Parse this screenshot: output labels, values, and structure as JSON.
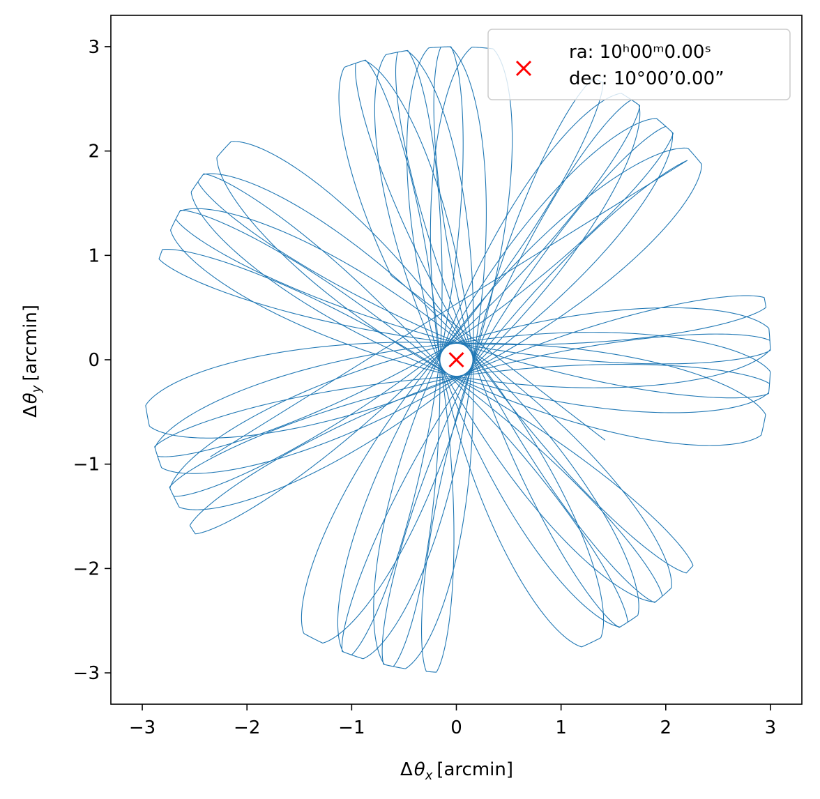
{
  "chart_data": {
    "type": "line",
    "xlabel_parts": [
      "Δ",
      "θ",
      "x",
      "[arcmin]"
    ],
    "ylabel_parts": [
      "Δ",
      "θ",
      "y",
      "[arcmin]"
    ],
    "xlim": [
      -3.3,
      3.3
    ],
    "ylim": [
      -3.3,
      3.3
    ],
    "xticks": [
      -3,
      -2,
      -1,
      0,
      1,
      2,
      3
    ],
    "yticks": [
      -3,
      -2,
      -1,
      0,
      1,
      2,
      3
    ],
    "xtick_labels": [
      "−3",
      "−2",
      "−1",
      "0",
      "1",
      "2",
      "3"
    ],
    "ytick_labels": [
      "−3",
      "−2",
      "−1",
      "0",
      "1",
      "2",
      "3"
    ],
    "grid": false,
    "legend_placement": "top-right",
    "legend": {
      "ra_line": "ra: 10ʰ00ᵐ0.00ˢ",
      "dec_line": "dec: 10°00’0.00”"
    },
    "series": [
      {
        "kind": "scan-trajectory",
        "color": "#1f77b4",
        "start": [
          -2.35,
          -0.93
        ],
        "end": [
          1.42,
          -0.77
        ],
        "max_radius": 3.0,
        "center": [
          0,
          0
        ]
      },
      {
        "kind": "marker",
        "marker": "x",
        "color": "#ff0000",
        "x": [
          0
        ],
        "y": [
          0
        ]
      }
    ]
  }
}
